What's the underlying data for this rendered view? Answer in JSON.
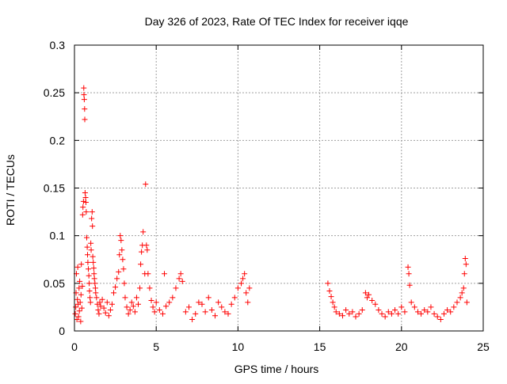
{
  "chart_data": {
    "type": "scatter",
    "title": "Day 326 of 2023, Rate Of TEC Index for receiver iqqe",
    "xlabel": "GPS time / hours",
    "ylabel": "ROTI / TECUs",
    "xlim": [
      0,
      25
    ],
    "ylim": [
      0,
      0.3
    ],
    "xticks": [
      0,
      5,
      10,
      15,
      20,
      25
    ],
    "yticks": [
      0,
      0.05,
      0.1,
      0.15,
      0.2,
      0.25,
      0.3
    ],
    "grid": true,
    "marker": "+",
    "marker_color": "#ff0000",
    "series": [
      {
        "name": "ROTI",
        "points": [
          [
            0.05,
            0.018
          ],
          [
            0.08,
            0.025
          ],
          [
            0.1,
            0.04
          ],
          [
            0.12,
            0.06
          ],
          [
            0.15,
            0.012
          ],
          [
            0.18,
            0.033
          ],
          [
            0.2,
            0.067
          ],
          [
            0.22,
            0.028
          ],
          [
            0.25,
            0.015
          ],
          [
            0.28,
            0.045
          ],
          [
            0.3,
            0.021
          ],
          [
            0.32,
            0.052
          ],
          [
            0.35,
            0.03
          ],
          [
            0.38,
            0.01
          ],
          [
            0.4,
            0.038
          ],
          [
            0.42,
            0.07
          ],
          [
            0.45,
            0.024
          ],
          [
            0.48,
            0.047
          ],
          [
            0.5,
            0.122
          ],
          [
            0.52,
            0.13
          ],
          [
            0.55,
            0.136
          ],
          [
            0.57,
            0.255
          ],
          [
            0.58,
            0.248
          ],
          [
            0.6,
            0.243
          ],
          [
            0.62,
            0.233
          ],
          [
            0.63,
            0.222
          ],
          [
            0.65,
            0.145
          ],
          [
            0.68,
            0.14
          ],
          [
            0.7,
            0.135
          ],
          [
            0.72,
            0.125
          ],
          [
            0.75,
            0.098
          ],
          [
            0.78,
            0.088
          ],
          [
            0.8,
            0.08
          ],
          [
            0.82,
            0.072
          ],
          [
            0.85,
            0.065
          ],
          [
            0.88,
            0.058
          ],
          [
            0.9,
            0.05
          ],
          [
            0.92,
            0.042
          ],
          [
            0.95,
            0.035
          ],
          [
            0.98,
            0.03
          ],
          [
            1.0,
            0.092
          ],
          [
            1.02,
            0.085
          ],
          [
            1.05,
            0.118
          ],
          [
            1.08,
            0.125
          ],
          [
            1.1,
            0.11
          ],
          [
            1.12,
            0.078
          ],
          [
            1.15,
            0.072
          ],
          [
            1.18,
            0.066
          ],
          [
            1.2,
            0.06
          ],
          [
            1.22,
            0.055
          ],
          [
            1.25,
            0.05
          ],
          [
            1.28,
            0.045
          ],
          [
            1.3,
            0.04
          ],
          [
            1.35,
            0.035
          ],
          [
            1.4,
            0.028
          ],
          [
            1.45,
            0.022
          ],
          [
            1.5,
            0.018
          ],
          [
            1.55,
            0.03
          ],
          [
            1.6,
            0.026
          ],
          [
            1.7,
            0.033
          ],
          [
            1.8,
            0.024
          ],
          [
            1.9,
            0.019
          ],
          [
            2.0,
            0.03
          ],
          [
            2.1,
            0.016
          ],
          [
            2.2,
            0.022
          ],
          [
            2.3,
            0.028
          ],
          [
            2.4,
            0.04
          ],
          [
            2.5,
            0.046
          ],
          [
            2.6,
            0.055
          ],
          [
            2.7,
            0.062
          ],
          [
            2.75,
            0.08
          ],
          [
            2.8,
            0.1
          ],
          [
            2.85,
            0.095
          ],
          [
            2.9,
            0.085
          ],
          [
            2.95,
            0.075
          ],
          [
            3.0,
            0.065
          ],
          [
            3.05,
            0.05
          ],
          [
            3.1,
            0.035
          ],
          [
            3.2,
            0.025
          ],
          [
            3.3,
            0.018
          ],
          [
            3.4,
            0.022
          ],
          [
            3.5,
            0.03
          ],
          [
            3.6,
            0.026
          ],
          [
            3.7,
            0.02
          ],
          [
            3.8,
            0.035
          ],
          [
            3.9,
            0.028
          ],
          [
            4.0,
            0.045
          ],
          [
            4.05,
            0.07
          ],
          [
            4.1,
            0.083
          ],
          [
            4.15,
            0.09
          ],
          [
            4.2,
            0.104
          ],
          [
            4.3,
            0.06
          ],
          [
            4.35,
            0.154
          ],
          [
            4.4,
            0.09
          ],
          [
            4.45,
            0.085
          ],
          [
            4.5,
            0.06
          ],
          [
            4.6,
            0.045
          ],
          [
            4.7,
            0.032
          ],
          [
            4.8,
            0.025
          ],
          [
            4.9,
            0.02
          ],
          [
            5.0,
            0.03
          ],
          [
            5.2,
            0.022
          ],
          [
            5.4,
            0.018
          ],
          [
            5.5,
            0.06
          ],
          [
            5.6,
            0.026
          ],
          [
            5.8,
            0.03
          ],
          [
            6.0,
            0.035
          ],
          [
            6.2,
            0.045
          ],
          [
            6.4,
            0.055
          ],
          [
            6.5,
            0.06
          ],
          [
            6.6,
            0.052
          ],
          [
            6.8,
            0.02
          ],
          [
            7.0,
            0.025
          ],
          [
            7.2,
            0.012
          ],
          [
            7.4,
            0.018
          ],
          [
            7.6,
            0.03
          ],
          [
            7.8,
            0.028
          ],
          [
            8.0,
            0.02
          ],
          [
            8.2,
            0.035
          ],
          [
            8.4,
            0.022
          ],
          [
            8.6,
            0.016
          ],
          [
            8.8,
            0.03
          ],
          [
            9.0,
            0.025
          ],
          [
            9.2,
            0.02
          ],
          [
            9.4,
            0.018
          ],
          [
            9.6,
            0.028
          ],
          [
            9.8,
            0.035
          ],
          [
            10.0,
            0.045
          ],
          [
            10.2,
            0.05
          ],
          [
            10.3,
            0.055
          ],
          [
            10.4,
            0.06
          ],
          [
            10.5,
            0.04
          ],
          [
            10.6,
            0.03
          ],
          [
            10.7,
            0.045
          ],
          [
            15.5,
            0.05
          ],
          [
            15.6,
            0.042
          ],
          [
            15.7,
            0.036
          ],
          [
            15.8,
            0.03
          ],
          [
            15.9,
            0.025
          ],
          [
            16.0,
            0.02
          ],
          [
            16.2,
            0.018
          ],
          [
            16.4,
            0.016
          ],
          [
            16.6,
            0.022
          ],
          [
            16.8,
            0.018
          ],
          [
            17.0,
            0.02
          ],
          [
            17.2,
            0.015
          ],
          [
            17.4,
            0.018
          ],
          [
            17.6,
            0.022
          ],
          [
            17.8,
            0.04
          ],
          [
            17.9,
            0.035
          ],
          [
            18.0,
            0.038
          ],
          [
            18.2,
            0.032
          ],
          [
            18.4,
            0.028
          ],
          [
            18.6,
            0.022
          ],
          [
            18.8,
            0.018
          ],
          [
            19.0,
            0.015
          ],
          [
            19.2,
            0.02
          ],
          [
            19.4,
            0.018
          ],
          [
            19.6,
            0.022
          ],
          [
            19.8,
            0.018
          ],
          [
            20.0,
            0.025
          ],
          [
            20.2,
            0.02
          ],
          [
            20.4,
            0.067
          ],
          [
            20.45,
            0.06
          ],
          [
            20.5,
            0.048
          ],
          [
            20.6,
            0.03
          ],
          [
            20.8,
            0.025
          ],
          [
            21.0,
            0.02
          ],
          [
            21.2,
            0.018
          ],
          [
            21.4,
            0.022
          ],
          [
            21.6,
            0.02
          ],
          [
            21.8,
            0.025
          ],
          [
            22.0,
            0.018
          ],
          [
            22.2,
            0.015
          ],
          [
            22.4,
            0.012
          ],
          [
            22.6,
            0.018
          ],
          [
            22.8,
            0.022
          ],
          [
            23.0,
            0.02
          ],
          [
            23.2,
            0.025
          ],
          [
            23.4,
            0.03
          ],
          [
            23.6,
            0.035
          ],
          [
            23.7,
            0.04
          ],
          [
            23.8,
            0.045
          ],
          [
            23.85,
            0.06
          ],
          [
            23.9,
            0.076
          ],
          [
            23.95,
            0.07
          ],
          [
            24.0,
            0.03
          ]
        ]
      }
    ]
  }
}
